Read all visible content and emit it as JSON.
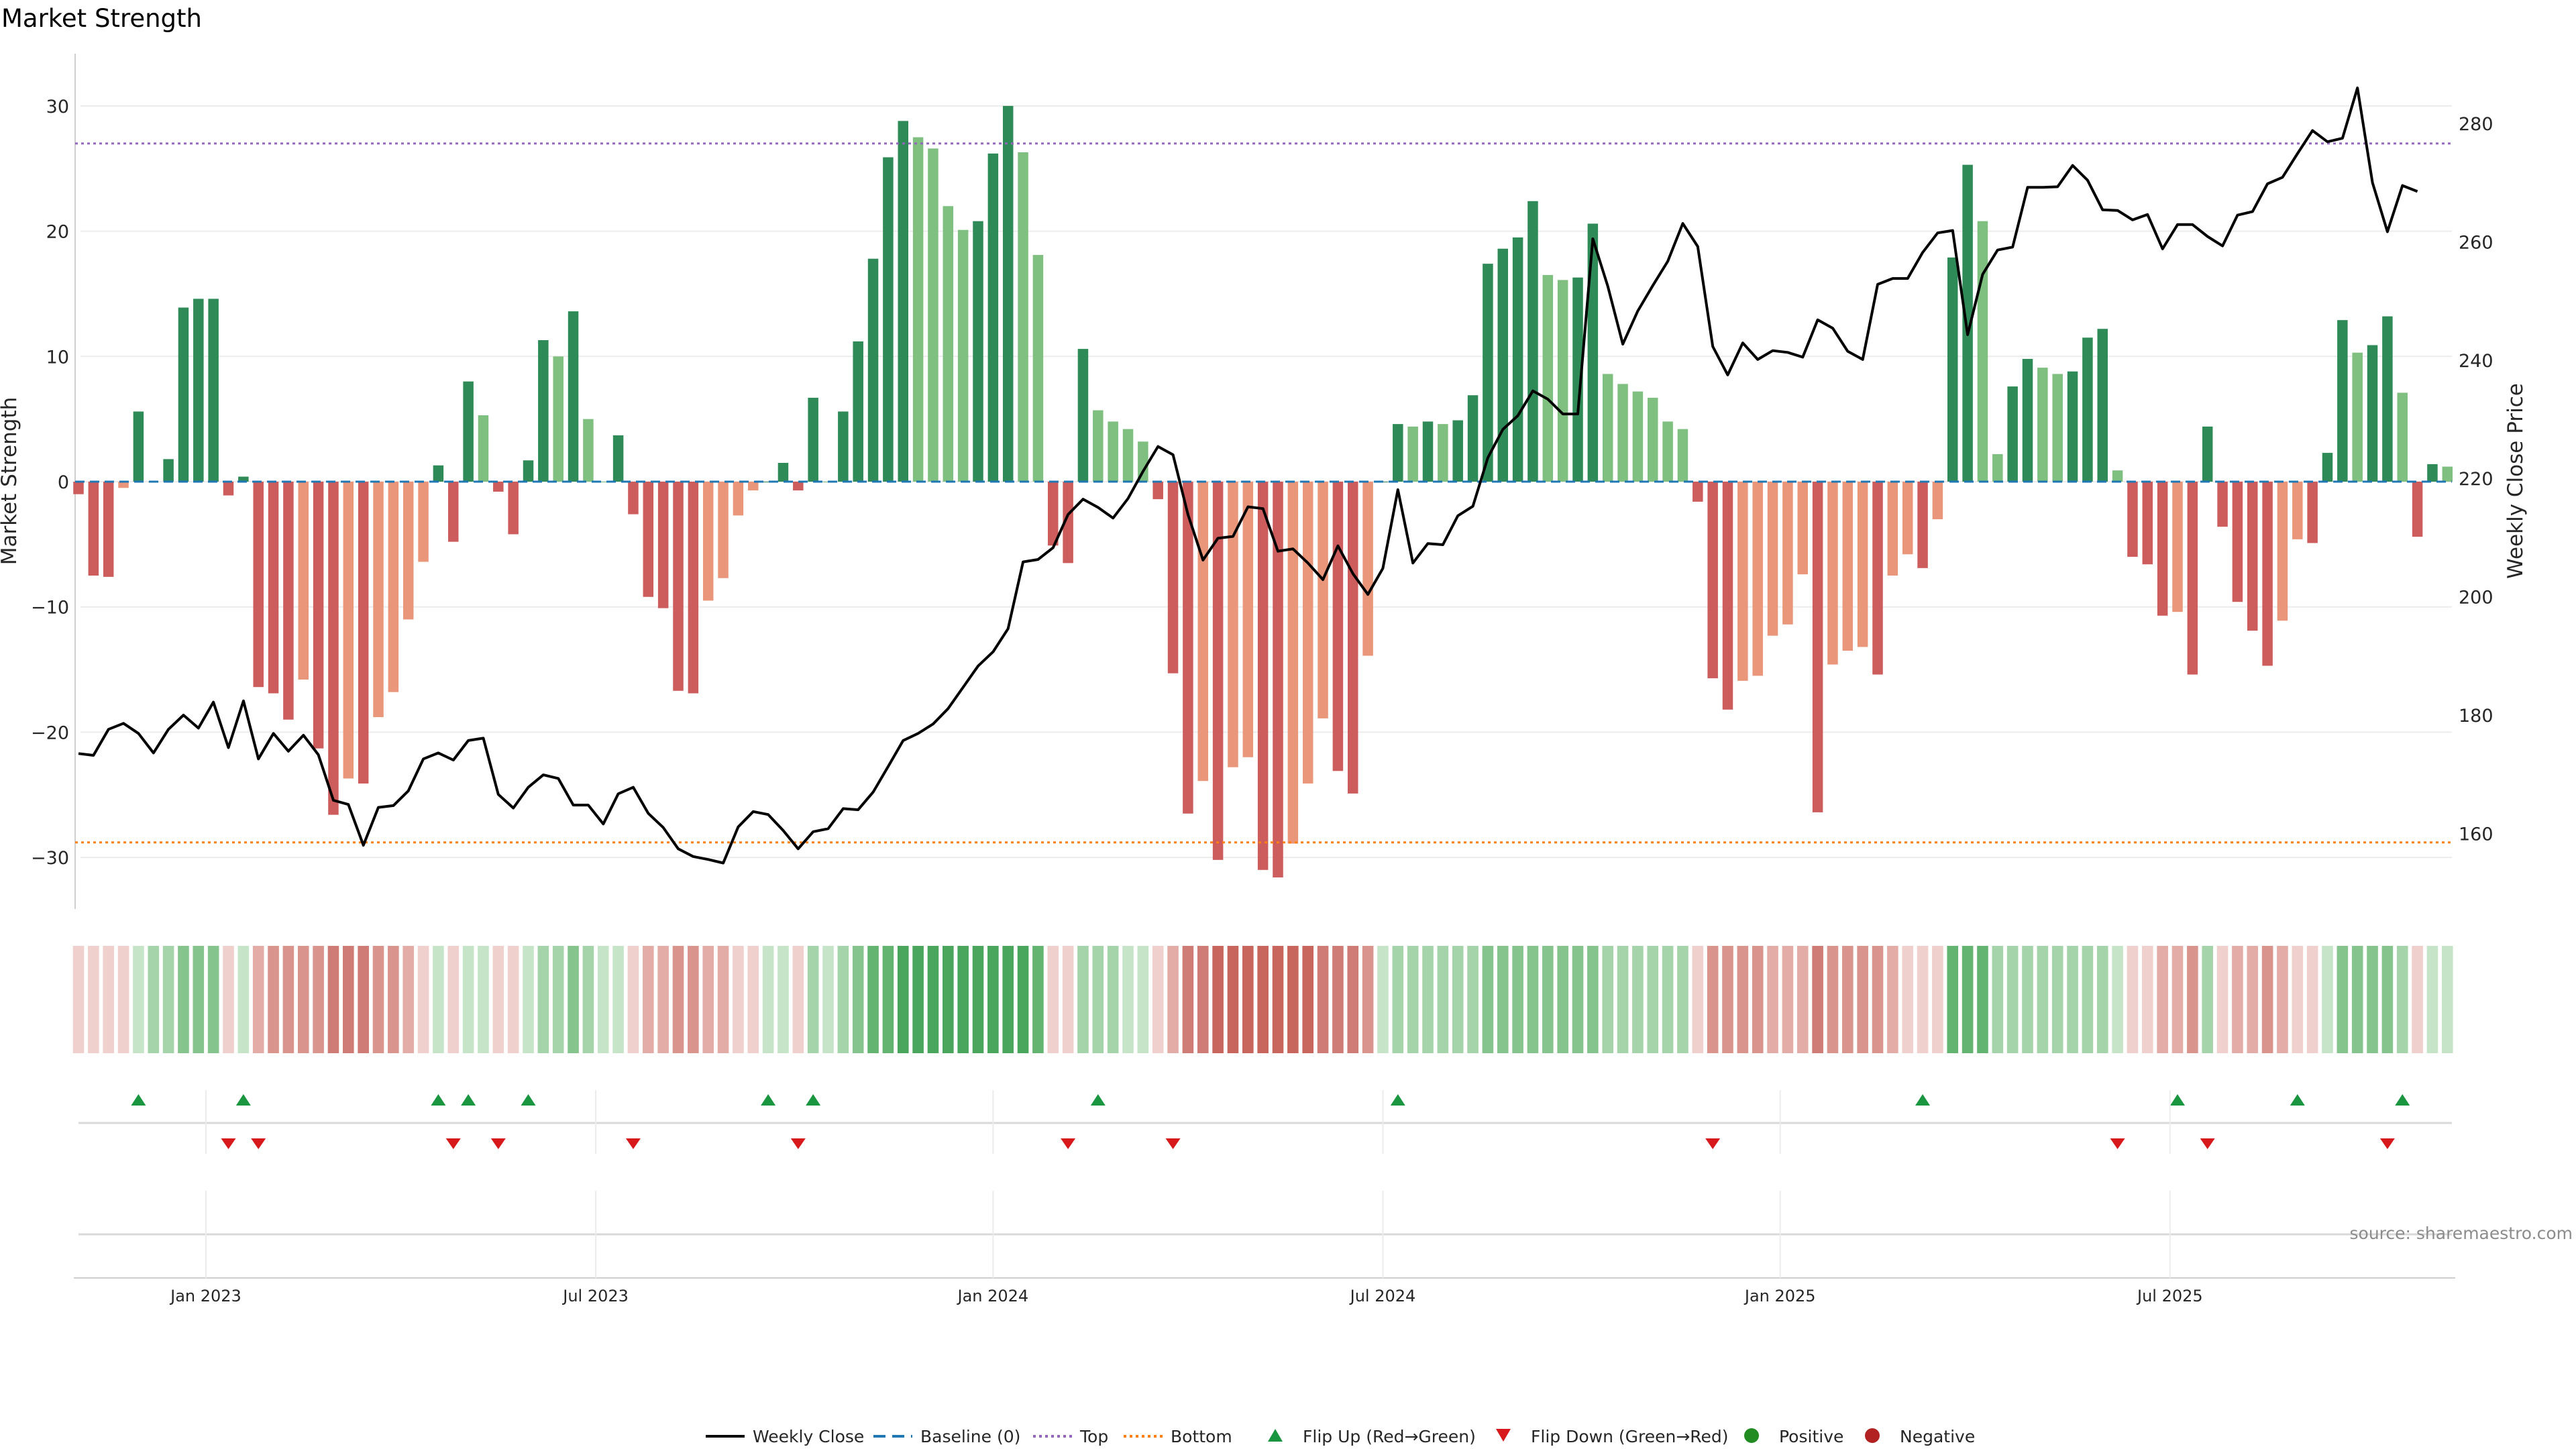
{
  "chart_data": {
    "type": "bar",
    "title": "Market Strength",
    "ylabel": "Market Strength",
    "y2label": "Weekly Close Price",
    "ylim": [
      -34,
      34
    ],
    "y2lim": [
      150,
      290
    ],
    "yticks": [
      30,
      20,
      10,
      0,
      -10,
      -20,
      -30
    ],
    "ytick_labels": [
      "30",
      "20",
      "10",
      "0",
      "−10",
      "−20",
      "−30"
    ],
    "y2ticks": [
      280,
      260,
      240,
      220,
      200,
      180,
      160
    ],
    "y2tick_labels": [
      "280",
      "260",
      "240",
      "220",
      "200",
      "180",
      "160"
    ],
    "top_line": 27,
    "bottom_line": -28.8,
    "xaxis": {
      "start_week": 0,
      "ticks": [
        {
          "week": 8.5,
          "label": "Jan 2023"
        },
        {
          "week": 34.5,
          "label": "Jul 2023"
        },
        {
          "week": 61,
          "label": "Jan 2024"
        },
        {
          "week": 87,
          "label": "Jul 2024"
        },
        {
          "week": 113.5,
          "label": "Jan 2025"
        },
        {
          "week": 139.5,
          "label": "Jul 2025"
        }
      ]
    },
    "strength": [
      -1,
      -7.5,
      -7.6,
      -0.5,
      5.6,
      0,
      1.8,
      13.9,
      14.6,
      14.6,
      -1.1,
      0.4,
      -16.4,
      -16.9,
      -19,
      -15.8,
      -21.3,
      -26.6,
      -23.7,
      -24.1,
      -18.8,
      -16.8,
      -11,
      -6.4,
      1.3,
      -4.8,
      8,
      5.3,
      -0.8,
      -4.2,
      1.7,
      11.3,
      10,
      13.6,
      5,
      0,
      3.7,
      -2.6,
      -9.2,
      -10.1,
      -16.7,
      -16.9,
      -9.5,
      -7.7,
      -2.7,
      -0.7,
      0,
      1.5,
      -0.7,
      6.7,
      0,
      5.6,
      11.2,
      17.8,
      25.9,
      28.8,
      27.5,
      26.6,
      22,
      20.1,
      20.8,
      26.2,
      30,
      26.3,
      18.1,
      -5.1,
      -6.5,
      10.6,
      5.7,
      4.8,
      4.2,
      3.2,
      -1.4,
      -15.3,
      -26.5,
      -23.9,
      -30.2,
      -22.8,
      -22,
      -31,
      -31.6,
      -28.9,
      -24.1,
      -18.9,
      -23.1,
      -24.9,
      -13.9,
      0,
      4.6,
      4.4,
      4.8,
      4.6,
      4.9,
      6.9,
      17.4,
      18.6,
      19.5,
      22.4,
      16.5,
      16.1,
      16.3,
      20.6,
      8.6,
      7.8,
      7.2,
      6.7,
      4.8,
      4.2,
      -1.6,
      -15.7,
      -18.2,
      -15.9,
      -15.5,
      -12.3,
      -11.4,
      -7.4,
      -26.4,
      -14.6,
      -13.5,
      -13.2,
      -15.4,
      -7.5,
      -5.8,
      -6.9,
      -3,
      17.9,
      25.3,
      20.8,
      2.2,
      7.6,
      9.8,
      9.1,
      8.6,
      8.8,
      11.5,
      12.2,
      0.9,
      -6,
      -6.6,
      -10.7,
      -10.4,
      -15.4,
      4.4,
      -3.6,
      -9.6,
      -11.9,
      -14.7,
      -11.1,
      -4.6,
      -4.9,
      2.3,
      12.9,
      10.3,
      10.9,
      13.2,
      7.1,
      -4.4,
      1.4,
      1.2
    ],
    "close": [
      173.5,
      173.2,
      177.6,
      178.6,
      176.9,
      173.6,
      177.6,
      180,
      177.8,
      182.2,
      174.5,
      182.4,
      172.6,
      176.9,
      173.9,
      176.6,
      173.3,
      165.6,
      164.9,
      158,
      164.4,
      164.7,
      167.2,
      172.6,
      173.6,
      172.4,
      175.7,
      176.1,
      166.6,
      164.3,
      167.8,
      169.9,
      169.3,
      164.8,
      164.8,
      161.6,
      166.7,
      167.8,
      163.4,
      161,
      157.4,
      156.1,
      155.6,
      155,
      161.1,
      163.7,
      163.2,
      160.5,
      157.4,
      160.3,
      160.8,
      164.2,
      164,
      167,
      171.3,
      175.7,
      176.9,
      178.5,
      181.1,
      184.7,
      188.3,
      190.7,
      194.6,
      205.9,
      206.3,
      208.3,
      213.9,
      216.5,
      215.1,
      213.3,
      216.6,
      221.2,
      225.4,
      224,
      213.9,
      206.2,
      209.9,
      210.2,
      215.2,
      214.9,
      207.7,
      208.1,
      205.7,
      202.9,
      208.6,
      203.9,
      200.4,
      204.8,
      218.1,
      205.7,
      209,
      208.8,
      213.7,
      215.3,
      223.5,
      228.3,
      230.6,
      234.8,
      233.4,
      230.9,
      230.9,
      260.5,
      252.5,
      242.7,
      248.3,
      252.6,
      256.7,
      263.1,
      259.2,
      242.3,
      237.5,
      242.9,
      240.1,
      241.6,
      241.3,
      240.5,
      246.8,
      245.4,
      241.5,
      240.1,
      252.8,
      253.8,
      253.8,
      258.2,
      261.5,
      261.9,
      244.3,
      254.5,
      258.6,
      259.1,
      269.2,
      269.2,
      269.3,
      272.9,
      270.4,
      265.4,
      265.3,
      263.7,
      264.6,
      258.8,
      262.9,
      262.9,
      260.9,
      259.3,
      264.5,
      265.1,
      269.8,
      270.9,
      274.9,
      278.8,
      276.9,
      277.5,
      286,
      270,
      261.7,
      269.5,
      268.5
    ],
    "tile_levels": [
      -1,
      -1,
      -1,
      -1,
      1,
      2,
      2,
      3,
      3,
      3,
      -1,
      1,
      -2,
      -3,
      -3,
      -3,
      -3,
      -4,
      -4,
      -4,
      -3,
      -3,
      -2,
      -1,
      1,
      -1,
      1,
      1,
      -1,
      -1,
      1,
      2,
      2,
      3,
      2,
      1,
      1,
      -1,
      -2,
      -2,
      -3,
      -3,
      -2,
      -2,
      -1,
      -1,
      1,
      1,
      -1,
      2,
      1,
      2,
      3,
      4,
      4,
      5,
      5,
      5,
      5,
      5,
      5,
      5,
      5,
      5,
      4,
      -1,
      -1,
      2,
      2,
      2,
      1,
      1,
      -1,
      -2,
      -4,
      -4,
      -5,
      -5,
      -5,
      -5,
      -5,
      -5,
      -5,
      -4,
      -4,
      -4,
      -3,
      1,
      2,
      2,
      2,
      2,
      2,
      2,
      3,
      3,
      3,
      3,
      3,
      3,
      3,
      3,
      2,
      2,
      2,
      2,
      2,
      2,
      -1,
      -3,
      -3,
      -3,
      -3,
      -2,
      -2,
      -2,
      -4,
      -3,
      -3,
      -3,
      -3,
      -2,
      -1,
      -1,
      -1,
      4,
      4,
      4,
      2,
      2,
      2,
      2,
      2,
      2,
      2,
      2,
      1,
      -1,
      -1,
      -2,
      -2,
      -3,
      2,
      -1,
      -2,
      -2,
      -3,
      -2,
      -1,
      -1,
      1,
      3,
      3,
      3,
      3,
      2,
      -1,
      1,
      1
    ],
    "flip_up_weeks": [
      4,
      11,
      24,
      26,
      30,
      46,
      49,
      68,
      88,
      123,
      140,
      148,
      155
    ],
    "flip_down_weeks": [
      10,
      12,
      25,
      28,
      37,
      48,
      66,
      73,
      109,
      136,
      142,
      154
    ],
    "legend": [
      "Weekly Close",
      "Baseline (0)",
      "Top",
      "Bottom",
      "Flip Up (Red→Green)",
      "Flip Down (Green→Red)",
      "Positive",
      "Negative"
    ],
    "source": "source: sharemaestro.com"
  },
  "colors": {
    "green_dark": "#2e8b57",
    "green_light": "#7fbf7f",
    "red_dark": "#cd5c5c",
    "red_light": "#e9967a",
    "line": "#000000",
    "top": "#9467bd",
    "bottom": "#ff7f0e",
    "baseline": "#1f77b4",
    "flip_up": "#1a9641",
    "flip_down": "#d7191c",
    "positive": "#228b22",
    "negative": "#b22222"
  }
}
